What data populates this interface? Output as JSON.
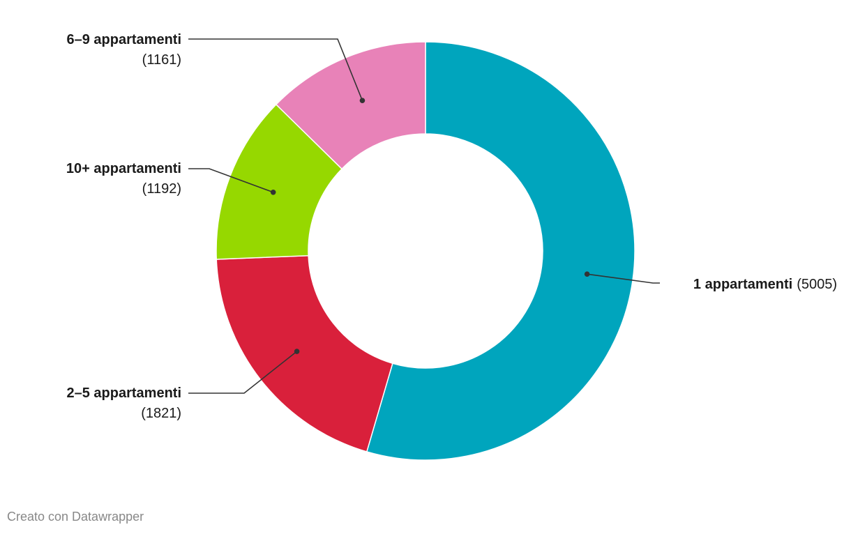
{
  "chart_data": {
    "type": "pie",
    "donut": true,
    "series": [
      {
        "label": "1 appartamenti",
        "value_text": "(5005)",
        "value": 5005,
        "color": "#00a5bd"
      },
      {
        "label": "2–5 appartamenti",
        "value_text": "(1821)",
        "value": 1821,
        "color": "#d9203b"
      },
      {
        "label": "10+ appartamenti",
        "value_text": "(1192)",
        "value": 1192,
        "color": "#96d800"
      },
      {
        "label": "6–9 appartamenti",
        "value_text": "(1161)",
        "value": 1161,
        "color": "#e882b8"
      }
    ]
  },
  "footer": {
    "credit": "Creato con Datawrapper"
  }
}
